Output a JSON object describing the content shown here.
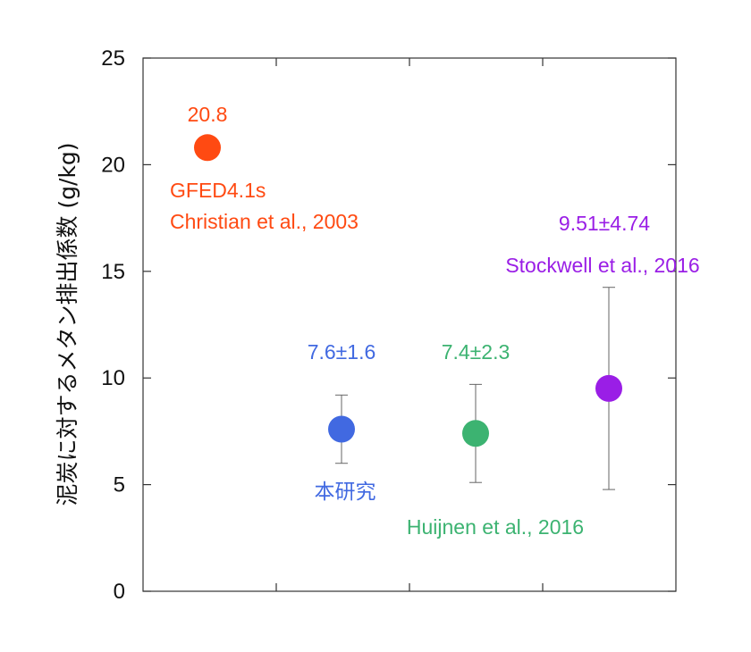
{
  "chart_data": {
    "type": "scatter",
    "title": "",
    "xlabel": "",
    "ylabel": "泥炭に対するメタン排出係数 (g/kg)",
    "ylim": [
      0,
      25
    ],
    "yticks": [
      0,
      5,
      10,
      15,
      20,
      25
    ],
    "grid": false,
    "points": [
      {
        "name": "GFED4.1s",
        "label_lines": [
          "GFED4.1s",
          "Christian et al., 2003"
        ],
        "value_label": "20.8",
        "y": 20.8,
        "err": null,
        "color": "#ff4a12"
      },
      {
        "name": "本研究",
        "label_lines": [
          "本研究"
        ],
        "value_label": "7.6±1.6",
        "y": 7.6,
        "err": [
          6.0,
          9.2
        ],
        "color": "#4169e1"
      },
      {
        "name": "Huijnen et al., 2016",
        "label_lines": [
          "Huijnen et al., 2016"
        ],
        "value_label": "7.4±2.3",
        "y": 7.4,
        "err": [
          5.1,
          9.7
        ],
        "color": "#3cb371"
      },
      {
        "name": "Stockwell et al., 2016",
        "label_lines": [
          "Stockwell et al., 2016"
        ],
        "value_label": "9.51±4.74",
        "y": 9.51,
        "err": [
          4.77,
          14.25
        ],
        "color": "#9a1ee6"
      }
    ]
  }
}
